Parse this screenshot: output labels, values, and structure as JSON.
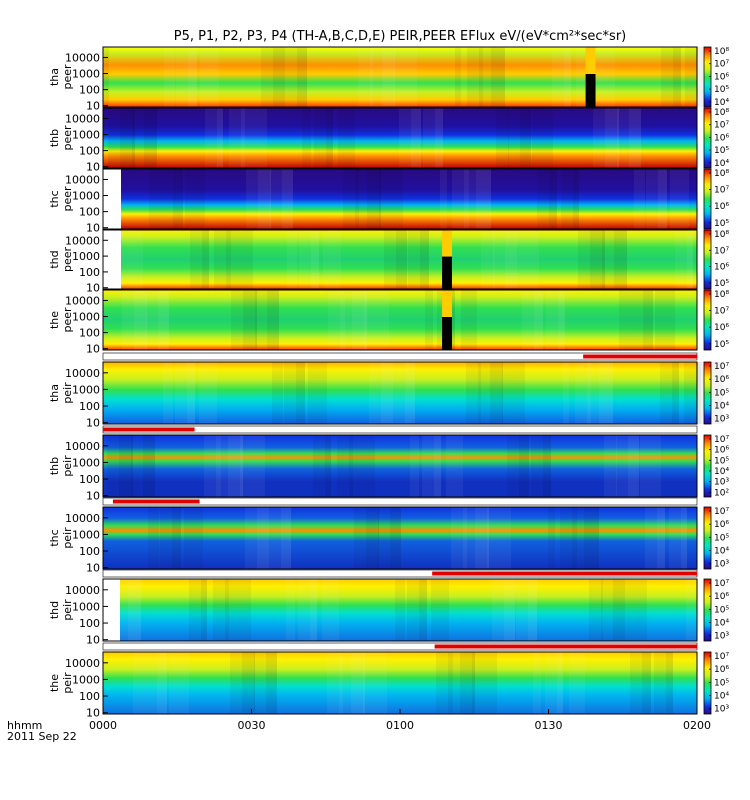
{
  "chart_data": {
    "type": "heatmap",
    "title": "P5, P1, P2, P3, P4 (TH-A,B,C,D,E) PEIR,PEER EFlux eV/(eV*cm²*sec*sr)",
    "time_axis": {
      "corner_label_1": "hhmm",
      "corner_label_2": "2011 Sep 22",
      "tick_labels": [
        "0000",
        "0030",
        "0100",
        "0130",
        "0200"
      ],
      "tick_minutes": [
        0,
        30,
        60,
        90,
        120
      ],
      "range_minutes": [
        0,
        120
      ]
    },
    "y_scale": "log",
    "grid": false,
    "colormap": "rainbow",
    "panels": [
      {
        "ylabel_top": "tha",
        "ylabel_bottom": "peer",
        "yticks": [
          "10000",
          "1000",
          "100",
          "10"
        ],
        "colorbar_labels": [
          "10⁸",
          "10⁷",
          "10⁶",
          "10⁵",
          "10⁴"
        ],
        "cbar_exp": [
          8,
          4
        ],
        "red_bars": [],
        "data_gaps": [
          {
            "start_min": 97.5,
            "end_min": 99.5
          }
        ]
      },
      {
        "ylabel_top": "thb",
        "ylabel_bottom": "peer",
        "yticks": [
          "10000",
          "1000",
          "100",
          "10"
        ],
        "colorbar_labels": [
          "10⁸",
          "10⁷",
          "10⁶",
          "10⁵",
          "10⁴"
        ],
        "cbar_exp": [
          8,
          4
        ],
        "red_bars": [],
        "data_gaps": []
      },
      {
        "ylabel_top": "thc",
        "ylabel_bottom": "peer",
        "yticks": [
          "10000",
          "1000",
          "100",
          "10"
        ],
        "colorbar_labels": [
          "10⁸",
          "10⁷",
          "10⁶",
          "10⁵"
        ],
        "cbar_exp": [
          8,
          5
        ],
        "red_bars": [],
        "data_gaps": []
      },
      {
        "ylabel_top": "thd",
        "ylabel_bottom": "peer",
        "yticks": [
          "10000",
          "1000",
          "100",
          "10"
        ],
        "colorbar_labels": [
          "10⁸",
          "10⁷",
          "10⁶",
          "10⁵"
        ],
        "cbar_exp": [
          8,
          5
        ],
        "red_bars": [],
        "data_gaps": [
          {
            "start_min": 68.5,
            "end_min": 70.5
          }
        ]
      },
      {
        "ylabel_top": "the",
        "ylabel_bottom": "peer",
        "yticks": [
          "10000",
          "1000",
          "100",
          "10"
        ],
        "colorbar_labels": [
          "10⁸",
          "10⁷",
          "10⁶",
          "10⁵"
        ],
        "cbar_exp": [
          8,
          5
        ],
        "red_bars": [],
        "data_gaps": [
          {
            "start_min": 68.5,
            "end_min": 70.5
          }
        ]
      },
      {
        "ylabel_top": "tha",
        "ylabel_bottom": "peir",
        "yticks": [
          "10000",
          "1000",
          "100",
          "10"
        ],
        "colorbar_labels": [
          "10⁷",
          "10⁶",
          "10⁵",
          "10⁴",
          "10³"
        ],
        "cbar_exp": [
          7,
          3
        ],
        "red_bars": [
          {
            "start_min": 97.0,
            "end_min": 120.0
          }
        ],
        "data_gaps": []
      },
      {
        "ylabel_top": "thb",
        "ylabel_bottom": "peir",
        "yticks": [
          "10000",
          "1000",
          "100",
          "10"
        ],
        "colorbar_labels": [
          "10⁷",
          "10⁶",
          "10⁵",
          "10⁴",
          "10³",
          "10²"
        ],
        "cbar_exp": [
          7,
          2
        ],
        "red_bars": [
          {
            "start_min": 0.0,
            "end_min": 18.5
          }
        ],
        "data_gaps": []
      },
      {
        "ylabel_top": "thc",
        "ylabel_bottom": "peir",
        "yticks": [
          "10000",
          "1000",
          "100",
          "10"
        ],
        "colorbar_labels": [
          "10⁷",
          "10⁶",
          "10⁵",
          "10⁴",
          "10³"
        ],
        "cbar_exp": [
          7,
          3
        ],
        "red_bars": [
          {
            "start_min": 2.0,
            "end_min": 19.5
          }
        ],
        "data_gaps": []
      },
      {
        "ylabel_top": "thd",
        "ylabel_bottom": "peir",
        "yticks": [
          "10000",
          "1000",
          "100",
          "10"
        ],
        "colorbar_labels": [
          "10⁷",
          "10⁶",
          "10⁵",
          "10⁴",
          "10³"
        ],
        "cbar_exp": [
          7,
          3
        ],
        "red_bars": [
          {
            "start_min": 66.5,
            "end_min": 120.0
          }
        ],
        "data_gaps": []
      },
      {
        "ylabel_top": "the",
        "ylabel_bottom": "peir",
        "yticks": [
          "10000",
          "1000",
          "100",
          "10"
        ],
        "colorbar_labels": [
          "10⁷",
          "10⁶",
          "10⁵",
          "10⁴",
          "10³"
        ],
        "cbar_exp": [
          7,
          3
        ],
        "red_bars": [
          {
            "start_min": 67.0,
            "end_min": 120.0
          }
        ],
        "data_gaps": []
      }
    ]
  }
}
